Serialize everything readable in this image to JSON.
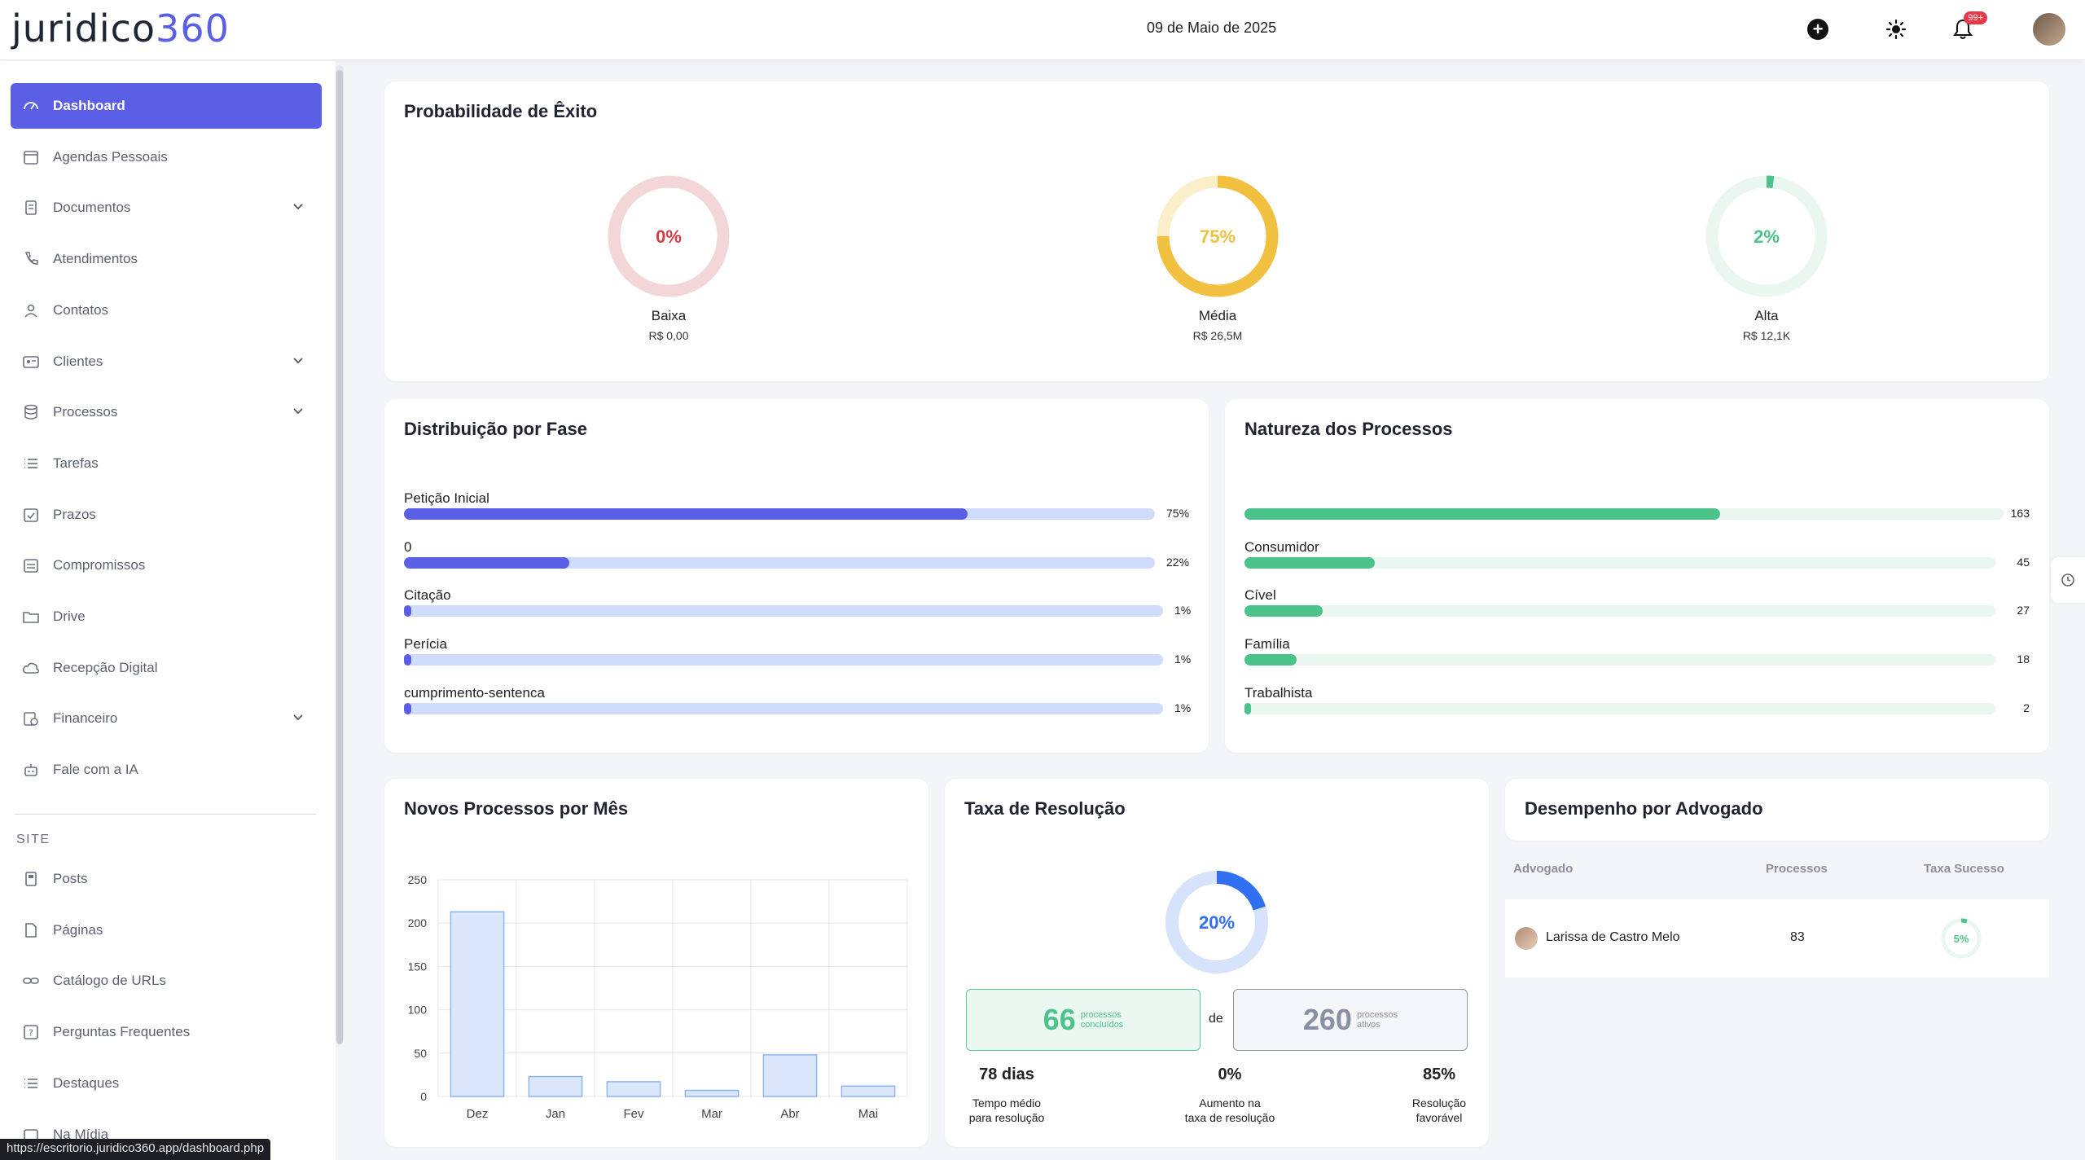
{
  "header": {
    "logo_text": "juridico",
    "logo_num": "360",
    "date": "09 de Maio de 2025",
    "notif_badge": "99+"
  },
  "sidebar": {
    "items": [
      {
        "label": "Dashboard",
        "icon": "gauge-icon",
        "active": true
      },
      {
        "label": "Agendas Pessoais",
        "icon": "calendar-icon"
      },
      {
        "label": "Documentos",
        "icon": "document-icon",
        "chevron": true
      },
      {
        "label": "Atendimentos",
        "icon": "phone-icon"
      },
      {
        "label": "Contatos",
        "icon": "user-icon"
      },
      {
        "label": "Clientes",
        "icon": "id-card-icon",
        "chevron": true
      },
      {
        "label": "Processos",
        "icon": "database-icon",
        "chevron": true
      },
      {
        "label": "Tarefas",
        "icon": "list-icon"
      },
      {
        "label": "Prazos",
        "icon": "calendar-check-icon"
      },
      {
        "label": "Compromissos",
        "icon": "calendar-list-icon"
      },
      {
        "label": "Drive",
        "icon": "folder-icon"
      },
      {
        "label": "Recepção Digital",
        "icon": "cloud-icon"
      },
      {
        "label": "Financeiro",
        "icon": "finance-icon",
        "chevron": true
      },
      {
        "label": "Fale com a IA",
        "icon": "robot-icon"
      }
    ],
    "section_label": "SITE",
    "site_items": [
      {
        "label": "Posts",
        "icon": "post-icon"
      },
      {
        "label": "Páginas",
        "icon": "page-icon"
      },
      {
        "label": "Catálogo de URLs",
        "icon": "link-icon"
      },
      {
        "label": "Perguntas Frequentes",
        "icon": "question-icon"
      },
      {
        "label": "Destaques",
        "icon": "list-icon"
      },
      {
        "label": "Na Mídia",
        "icon": "media-icon"
      }
    ]
  },
  "status_url": "https://escritorio.juridico360.app/dashboard.php",
  "probabilidade": {
    "title": "Probabilidade de Êxito",
    "items": [
      {
        "pct": "0%",
        "value": 0,
        "label": "Baixa",
        "amount": "R$ 0,00",
        "color": "#d93a45",
        "track": "#f3d6d8"
      },
      {
        "pct": "75%",
        "value": 75,
        "label": "Média",
        "amount": "R$ 26,5M",
        "color": "#f2c040",
        "track": "#fbeecb"
      },
      {
        "pct": "2%",
        "value": 2,
        "label": "Alta",
        "amount": "R$ 12,1K",
        "color": "#4cc38a",
        "track": "#e9f7f0"
      }
    ]
  },
  "distribuicao": {
    "title": "Distribuição por Fase",
    "rows": [
      {
        "label": "Petição Inicial",
        "pct": "75%",
        "value": 75
      },
      {
        "label": "0",
        "pct": "22%",
        "value": 22
      },
      {
        "label": "Citação",
        "pct": "1%",
        "value": 1
      },
      {
        "label": "Perícia",
        "pct": "1%",
        "value": 1
      },
      {
        "label": "cumprimento-sentenca",
        "pct": "1%",
        "value": 1
      }
    ]
  },
  "natureza": {
    "title": "Natureza dos Processos",
    "rows": [
      {
        "label": "",
        "count": "163",
        "value": 163
      },
      {
        "label": "Consumidor",
        "count": "45",
        "value": 45
      },
      {
        "label": "Cível",
        "count": "27",
        "value": 27
      },
      {
        "label": "Família",
        "count": "18",
        "value": 18
      },
      {
        "label": "Trabalhista",
        "count": "2",
        "value": 2
      }
    ]
  },
  "novos": {
    "title": "Novos Processos por Mês"
  },
  "chart_data": {
    "type": "bar",
    "title": "Novos Processos por Mês",
    "categories": [
      "Dez",
      "Jan",
      "Fev",
      "Mar",
      "Abr",
      "Mai"
    ],
    "values": [
      213,
      23,
      17,
      7,
      48,
      12
    ],
    "ylim": [
      0,
      250
    ],
    "yticks": [
      "0",
      "50",
      "100",
      "150",
      "200",
      "250"
    ],
    "grid": true
  },
  "taxa": {
    "title": "Taxa de Resolução",
    "pct": "20%",
    "value": 20,
    "concluidos": "66",
    "concluidos_l1": "processos",
    "concluidos_l2": "concluídos",
    "de": "de",
    "ativos": "260",
    "ativos_l1": "processos",
    "ativos_l2": "ativos",
    "stats": [
      {
        "value": "78 dias",
        "d1": "Tempo médio",
        "d2": "para resolução"
      },
      {
        "value": "0%",
        "d1": "Aumento na",
        "d2": "taxa de resolução"
      },
      {
        "value": "85%",
        "d1": "Resolução",
        "d2": "favorável"
      }
    ]
  },
  "desempenho": {
    "title": "Desempenho por Advogado",
    "headers": [
      "Advogado",
      "Processos",
      "Taxa Sucesso"
    ],
    "rows": [
      {
        "name": "Larissa de Castro Melo",
        "processos": "83",
        "taxa": "5%",
        "value": 5
      }
    ]
  },
  "colors": {
    "accent": "#5b5fe6",
    "bar_track": "#cfdcfb",
    "green": "#4cc38a",
    "green_track": "#e9f7f0",
    "blue": "#2f6ff0"
  }
}
